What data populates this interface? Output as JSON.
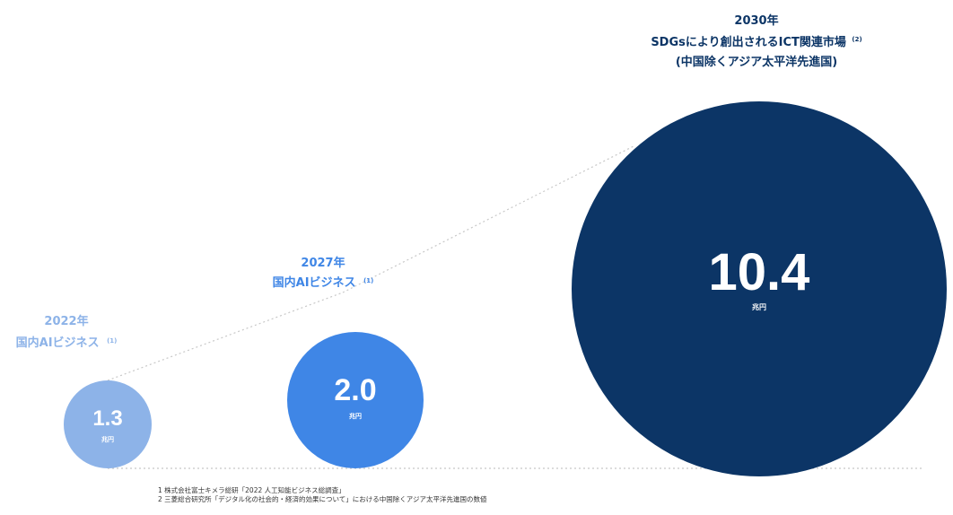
{
  "chart_data": {
    "type": "bubble",
    "unit": "兆円",
    "points": [
      {
        "year": "2022年",
        "description": "国内AIビジネス",
        "footnote_ref": "(1)",
        "value": 1.3,
        "value_label": "1.3",
        "color": "#8db3e8"
      },
      {
        "year": "2027年",
        "description": "国内AIビジネス",
        "footnote_ref": "(1)",
        "value": 2.0,
        "value_label": "2.0",
        "color": "#3f86e6"
      },
      {
        "year": "2030年",
        "description": "SDGsにより創出されるICT関連市場",
        "footnote_ref": "(2)",
        "description_line2": "(中国除くアジア太平洋先進国)",
        "value": 10.4,
        "value_label": "10.4",
        "color": "#0c3566"
      }
    ]
  },
  "colors": {
    "label_light": "#8db3e8",
    "label_mid": "#3f86e6",
    "label_dark": "#0c3566",
    "connector": "#c8c8c8"
  },
  "footnotes": [
    "1 株式会社富士キメラ総研「2022 人工知能ビジネス総調査」",
    "2 三菱総合研究所「デジタル化の社会的・経済的効果について」における中国除くアジア太平洋先進国の数値"
  ]
}
